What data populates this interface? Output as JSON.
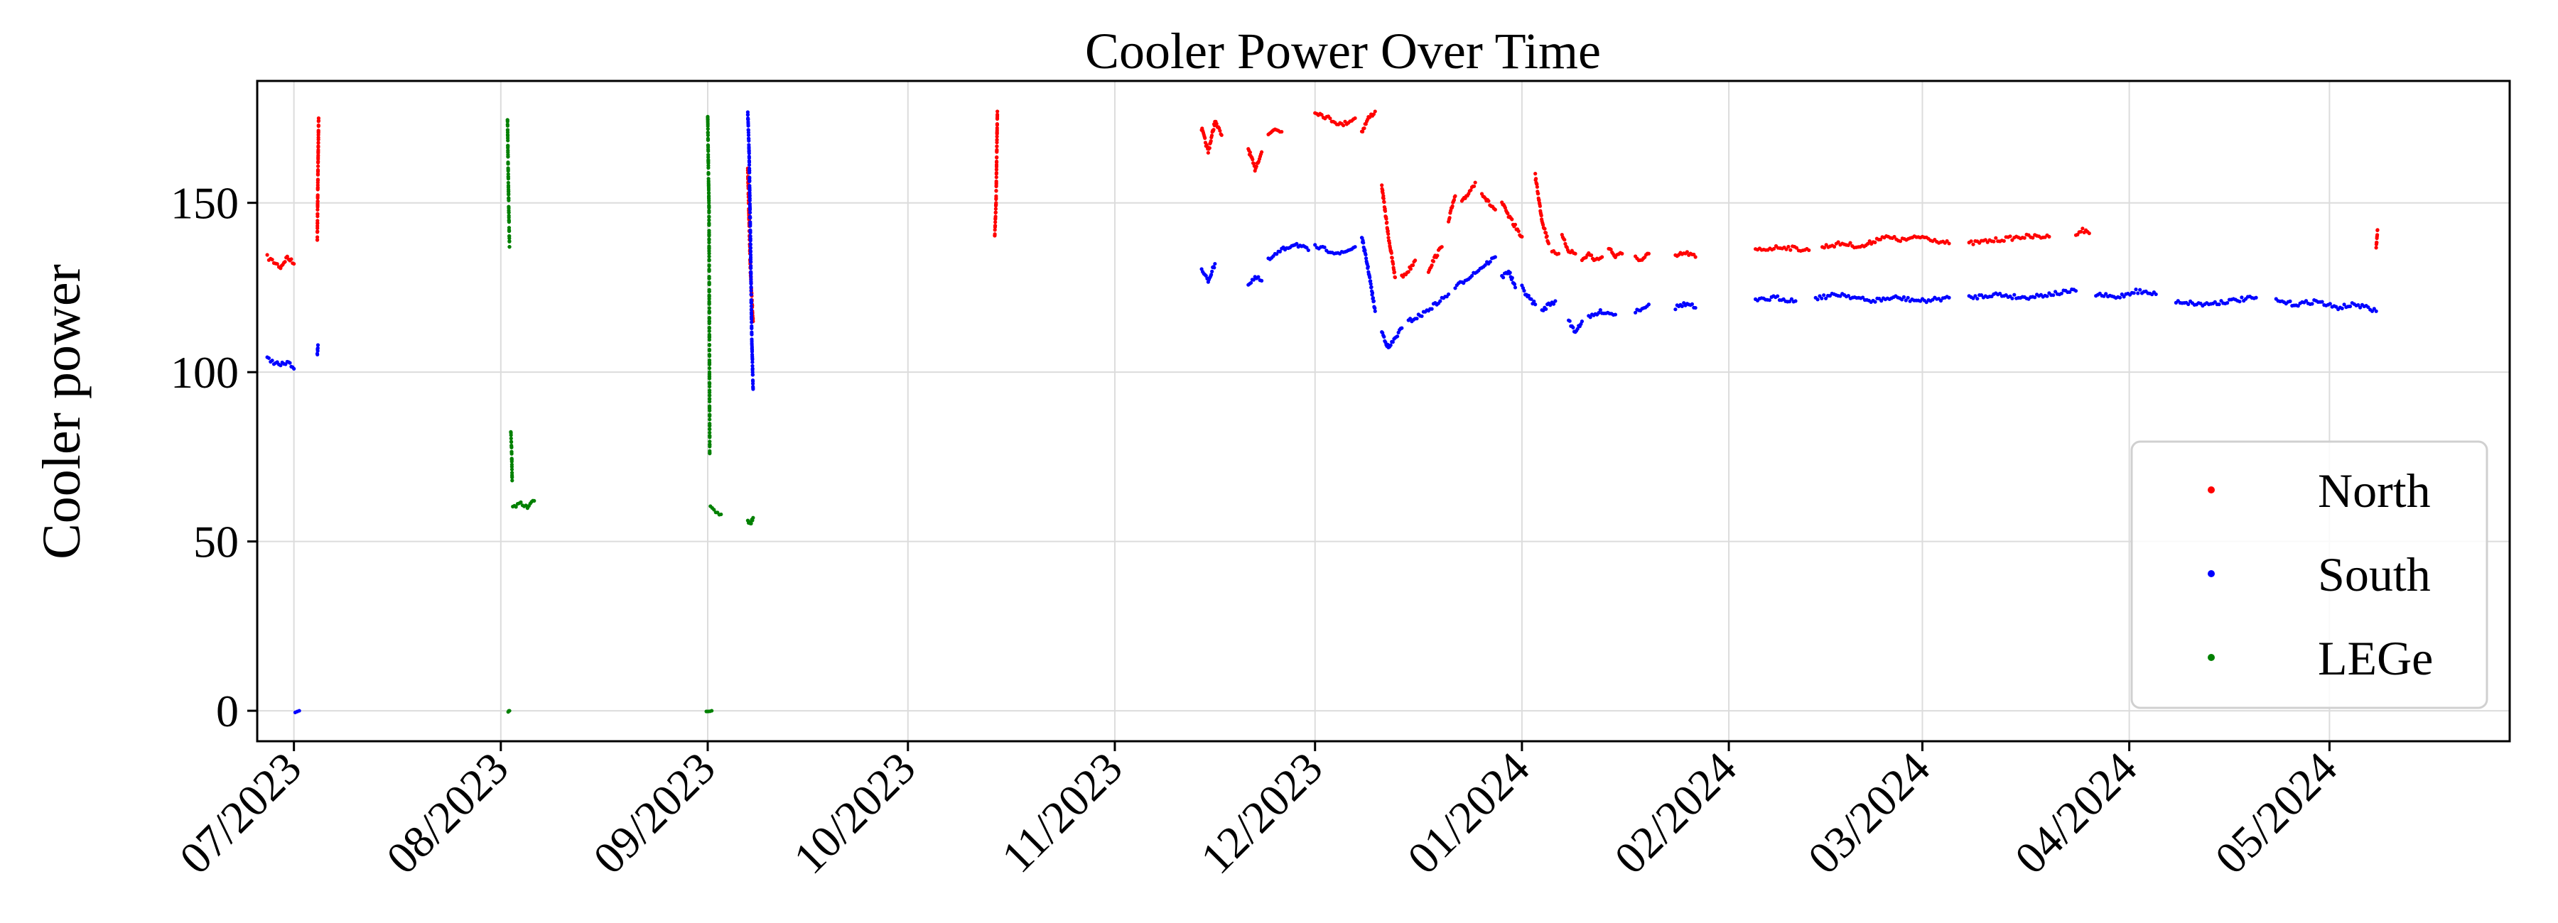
{
  "chart_data": {
    "type": "scatter",
    "title": "Cooler Power Over Time",
    "xlabel": "",
    "ylabel": "Cooler power",
    "x_unit": "days since 2023-06-01",
    "xlim": [
      24.5,
      362
    ],
    "ylim": [
      -9,
      186
    ],
    "grid": true,
    "legend_position": "lower-right",
    "x_ticks": [
      {
        "value": 30,
        "label": "07/2023"
      },
      {
        "value": 61,
        "label": "08/2023"
      },
      {
        "value": 92,
        "label": "09/2023"
      },
      {
        "value": 122,
        "label": "10/2023"
      },
      {
        "value": 153,
        "label": "11/2023"
      },
      {
        "value": 183,
        "label": "12/2023"
      },
      {
        "value": 214,
        "label": "01/2024"
      },
      {
        "value": 245,
        "label": "02/2024"
      },
      {
        "value": 274,
        "label": "03/2024"
      },
      {
        "value": 305,
        "label": "04/2024"
      },
      {
        "value": 335,
        "label": "05/2024"
      }
    ],
    "y_ticks": [
      {
        "value": 0,
        "label": "0"
      },
      {
        "value": 50,
        "label": "50"
      },
      {
        "value": 100,
        "label": "100"
      },
      {
        "value": 150,
        "label": "150"
      }
    ],
    "series": [
      {
        "name": "North",
        "color": "#ff0000",
        "segments": [
          {
            "x": [
              26,
              28,
              29,
              30
            ],
            "y": [
              134,
              131,
              134,
              132
            ]
          },
          {
            "x": [
              33.5,
              33.6,
              33.7
            ],
            "y": [
              139,
              159,
              175
            ]
          },
          {
            "x": [
              98.0,
              98.2,
              98.4,
              98.6,
              98.8
            ],
            "y": [
              160,
              145,
              130,
              122,
              115
            ]
          },
          {
            "x": [
              135.0,
              135.2,
              135.4
            ],
            "y": [
              140,
              150,
              177
            ]
          },
          {
            "x": [
              166,
              167,
              168,
              169
            ],
            "y": [
              172,
              165,
              174,
              170
            ]
          },
          {
            "x": [
              173,
              174,
              175
            ],
            "y": [
              166,
              160,
              165
            ]
          },
          {
            "x": [
              176,
              177,
              178
            ],
            "y": [
              170,
              172,
              171
            ]
          },
          {
            "x": [
              183,
              185,
              187,
              189
            ],
            "y": [
              177,
              175,
              173,
              175
            ]
          },
          {
            "x": [
              190,
              191,
              192
            ],
            "y": [
              171,
              175,
              177
            ]
          },
          {
            "x": [
              193,
              194,
              195
            ],
            "y": [
              155,
              140,
              128
            ]
          },
          {
            "x": [
              196,
              197,
              198
            ],
            "y": [
              128,
              130,
              133
            ]
          },
          {
            "x": [
              200,
              201,
              202
            ],
            "y": [
              130,
              134,
              137
            ]
          },
          {
            "x": [
              203,
              204
            ],
            "y": [
              145,
              152
            ]
          },
          {
            "x": [
              205,
              206,
              207
            ],
            "y": [
              150,
              153,
              156
            ]
          },
          {
            "x": [
              208,
              209,
              210
            ],
            "y": [
              153,
              150,
              148
            ]
          },
          {
            "x": [
              211,
              212,
              213,
              214
            ],
            "y": [
              150,
              146,
              143,
              140
            ]
          },
          {
            "x": [
              216,
              217,
              218
            ],
            "y": [
              158,
              145,
              138
            ]
          },
          {
            "x": [
              218.5,
              219.5
            ],
            "y": [
              136,
              135
            ]
          },
          {
            "x": [
              220,
              221,
              222
            ],
            "y": [
              140,
              136,
              135
            ]
          },
          {
            "x": [
              223,
              224,
              225,
              226
            ],
            "y": [
              133,
              135,
              133,
              134
            ]
          },
          {
            "x": [
              227,
              228,
              229
            ],
            "y": [
              137,
              134,
              135
            ]
          },
          {
            "x": [
              231,
              232,
              233
            ],
            "y": [
              134,
              133,
              135
            ]
          },
          {
            "x": [
              237,
              238,
              239,
              240
            ],
            "y": [
              134,
              135,
              135,
              134
            ]
          },
          {
            "x": [
              249,
              253,
              257
            ],
            "y": [
              136,
              137,
              136
            ]
          },
          {
            "x": [
              259,
              262,
              265,
              268,
              271,
              274,
              278
            ],
            "y": [
              137,
              138,
              137,
              140,
              139,
              140,
              138
            ]
          },
          {
            "x": [
              281,
              285,
              289,
              293
            ],
            "y": [
              138,
              139,
              140,
              140
            ]
          },
          {
            "x": [
              297,
              298,
              299
            ],
            "y": [
              141,
              142,
              141
            ]
          },
          {
            "x": [
              342,
              342.2
            ],
            "y": [
              137,
              142
            ]
          }
        ]
      },
      {
        "name": "South",
        "color": "#0000ff",
        "segments": [
          {
            "x": [
              26,
              28,
              29,
              30
            ],
            "y": [
              104,
              102,
              103,
              101
            ]
          },
          {
            "x": [
              33.5,
              33.6
            ],
            "y": [
              105,
              108
            ]
          },
          {
            "x": [
              30.2,
              30.8
            ],
            "y": [
              0,
              0
            ]
          },
          {
            "x": [
              98.0,
              98.2,
              98.4,
              98.6,
              98.8
            ],
            "y": [
              177,
              165,
              140,
              110,
              95
            ]
          },
          {
            "x": [
              166,
              167,
              168
            ],
            "y": [
              130,
              127,
              132
            ]
          },
          {
            "x": [
              173,
              174,
              175
            ],
            "y": [
              126,
              128,
              127
            ]
          },
          {
            "x": [
              176,
              178,
              180,
              182
            ],
            "y": [
              133,
              136,
              138,
              136
            ]
          },
          {
            "x": [
              183,
              185,
              187,
              189
            ],
            "y": [
              137,
              136,
              135,
              137
            ]
          },
          {
            "x": [
              190,
              191,
              192
            ],
            "y": [
              140,
              130,
              118
            ]
          },
          {
            "x": [
              193,
              194,
              195,
              196
            ],
            "y": [
              112,
              107,
              110,
              113
            ]
          },
          {
            "x": [
              197,
              199,
              201,
              203
            ],
            "y": [
              115,
              117,
              120,
              123
            ]
          },
          {
            "x": [
              204,
              206,
              208,
              210
            ],
            "y": [
              125,
              128,
              131,
              134
            ]
          },
          {
            "x": [
              211,
              212,
              213
            ],
            "y": [
              128,
              130,
              125
            ]
          },
          {
            "x": [
              214,
              215,
              216
            ],
            "y": [
              125,
              122,
              120
            ]
          },
          {
            "x": [
              217,
              218,
              219
            ],
            "y": [
              118,
              120,
              121
            ]
          },
          {
            "x": [
              221,
              222,
              223
            ],
            "y": [
              115,
              112,
              115
            ]
          },
          {
            "x": [
              224,
              226,
              228
            ],
            "y": [
              116,
              118,
              117
            ]
          },
          {
            "x": [
              231,
              232,
              233
            ],
            "y": [
              118,
              119,
              120
            ]
          },
          {
            "x": [
              237,
              238,
              239,
              240
            ],
            "y": [
              119,
              120,
              120,
              119
            ]
          },
          {
            "x": [
              249,
              252,
              255
            ],
            "y": [
              121,
              122,
              121
            ]
          },
          {
            "x": [
              258,
              262,
              266,
              270,
              274,
              278
            ],
            "y": [
              122,
              123,
              121,
              122,
              121,
              122
            ]
          },
          {
            "x": [
              281,
              285,
              289,
              293,
              297
            ],
            "y": [
              122,
              123,
              122,
              123,
              124
            ]
          },
          {
            "x": [
              300,
              303,
              306,
              309
            ],
            "y": [
              123,
              122,
              124,
              123
            ]
          },
          {
            "x": [
              312,
              316,
              320,
              324
            ],
            "y": [
              121,
              120,
              121,
              122
            ]
          },
          {
            "x": [
              327,
              330,
              333,
              336,
              339,
              342
            ],
            "y": [
              121,
              120,
              121,
              119,
              120,
              118
            ]
          }
        ]
      },
      {
        "name": "LEGe",
        "color": "#008000",
        "segments": [
          {
            "x": [
              62.0,
              62.1,
              62.2,
              62.3
            ],
            "y": [
              175,
              160,
              147,
              137
            ]
          },
          {
            "x": [
              62.5,
              62.6,
              62.7
            ],
            "y": [
              82,
              78,
              68
            ]
          },
          {
            "x": [
              62.8,
              64,
              65,
              66
            ],
            "y": [
              60,
              61,
              60,
              62
            ]
          },
          {
            "x": [
              62.1,
              62.3
            ],
            "y": [
              0,
              0
            ]
          },
          {
            "x": [
              92.0,
              92.1,
              92.2,
              92.3
            ],
            "y": [
              176,
              160,
              148,
              76
            ]
          },
          {
            "x": [
              92.4,
              93.2,
              94.0
            ],
            "y": [
              60,
              59,
              58
            ]
          },
          {
            "x": [
              91.8,
              92.6
            ],
            "y": [
              0,
              0
            ]
          },
          {
            "x": [
              98.0,
              98.4,
              98.8
            ],
            "y": [
              56,
              55,
              57
            ]
          }
        ]
      }
    ]
  }
}
